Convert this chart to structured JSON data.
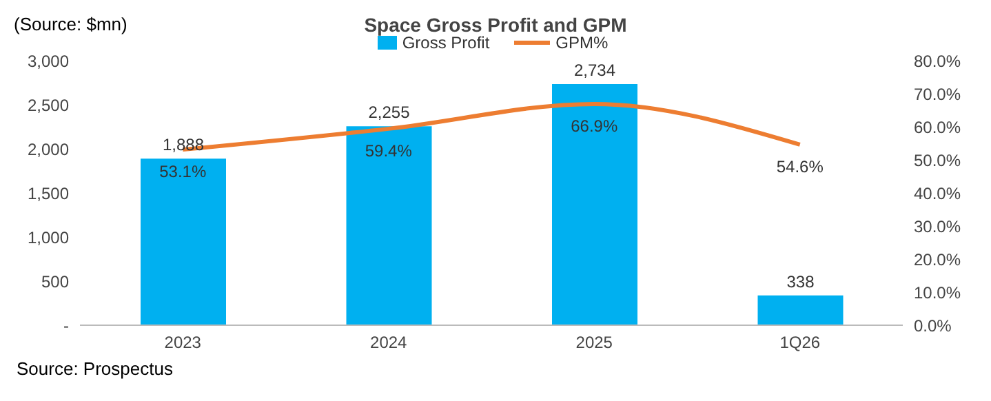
{
  "chart_data": {
    "type": "bar",
    "title": "Space Gross Profit and GPM",
    "categories": [
      "2023",
      "2024",
      "2025",
      "1Q26"
    ],
    "series": [
      {
        "name": "Gross Profit",
        "color": "#00b0f0",
        "values": [
          1888,
          2255,
          2734,
          338
        ],
        "value_labels": [
          "1,888",
          "2,255",
          "2,734",
          "338"
        ]
      },
      {
        "name": "GPM%",
        "type": "line",
        "axis": "y2",
        "color": "#ed7d31",
        "values": [
          53.1,
          59.4,
          66.9,
          54.6
        ],
        "value_labels": [
          "53.1%",
          "59.4%",
          "66.9%",
          "54.6%"
        ]
      }
    ],
    "ylim": [
      0,
      3000
    ],
    "yticks": [
      {
        "value": 0,
        "label": "-"
      },
      500,
      {
        "value": 1000,
        "label": "1,000"
      },
      {
        "value": 1500,
        "label": "1,500"
      },
      {
        "value": 2000,
        "label": "2,000"
      },
      {
        "value": 2500,
        "label": "2,500"
      },
      {
        "value": 3000,
        "label": "3,000"
      }
    ],
    "y2lim": [
      0,
      80
    ],
    "y2ticks": [
      {
        "value": 0,
        "label": "0.0%"
      },
      {
        "value": 10,
        "label": "10.0%"
      },
      {
        "value": 20,
        "label": "20.0%"
      },
      {
        "value": 30,
        "label": "30.0%"
      },
      {
        "value": 40,
        "label": "40.0%"
      },
      {
        "value": 50,
        "label": "50.0%"
      },
      {
        "value": 60,
        "label": "60.0%"
      },
      {
        "value": 70,
        "label": "70.0%"
      },
      {
        "value": 80,
        "label": "80.0%"
      }
    ],
    "legend": "top",
    "marker": "none",
    "line_style": "solid",
    "annotations": [
      "(Source: $mn)",
      "Source: Prospectus"
    ]
  }
}
